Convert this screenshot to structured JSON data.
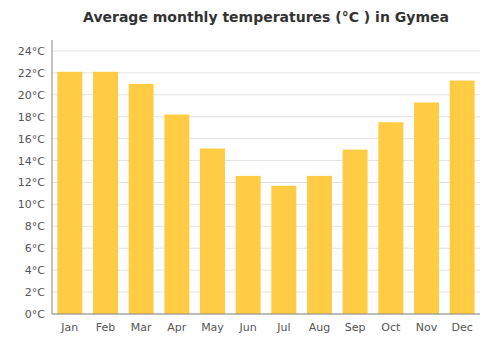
{
  "chart_data": {
    "type": "bar",
    "title": "Average monthly temperatures (°C ) in Gymea",
    "categories": [
      "Jan",
      "Feb",
      "Mar",
      "Apr",
      "May",
      "Jun",
      "Jul",
      "Aug",
      "Sep",
      "Oct",
      "Nov",
      "Dec"
    ],
    "values": [
      22.1,
      22.1,
      21.0,
      18.2,
      15.1,
      12.6,
      11.7,
      12.6,
      15.0,
      17.5,
      19.3,
      21.3
    ],
    "color": "#FFCC44",
    "ylim": [
      0,
      25
    ],
    "yticks": [
      {
        "value": 0,
        "label": "0°C"
      },
      {
        "value": 2,
        "label": "2°C"
      },
      {
        "value": 4,
        "label": "4°C"
      },
      {
        "value": 6,
        "label": "6°C"
      },
      {
        "value": 8,
        "label": "8°C"
      },
      {
        "value": 10,
        "label": "10°C"
      },
      {
        "value": 12,
        "label": "12°C"
      },
      {
        "value": 14,
        "label": "14°C"
      },
      {
        "value": 16,
        "label": "16°C"
      },
      {
        "value": 18,
        "label": "18°C"
      },
      {
        "value": 20,
        "label": "20°C"
      },
      {
        "value": 22,
        "label": "22°C"
      },
      {
        "value": 24,
        "label": "24°C"
      }
    ],
    "grid": true
  }
}
